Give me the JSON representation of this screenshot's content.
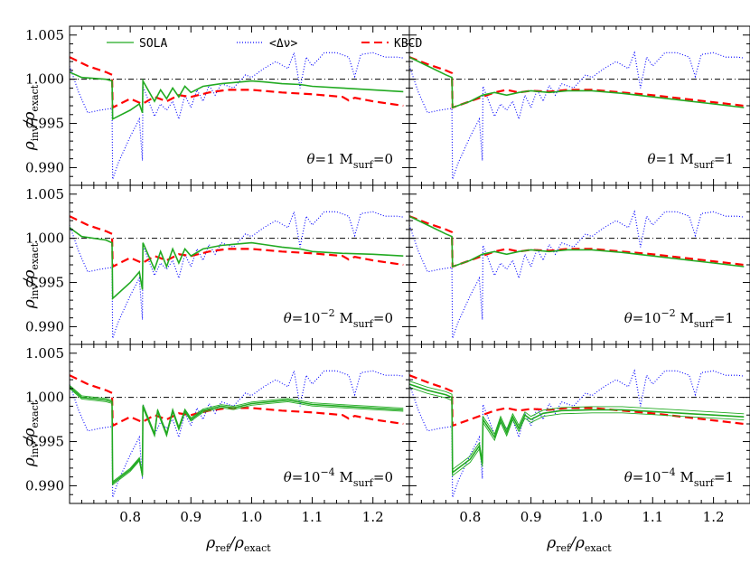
{
  "chart_data": {
    "type": "line",
    "layout": "3 rows x 2 columns, shared axes",
    "xlabel": {
      "main": "ρ",
      "sub": "ref",
      "mid": "/ρ",
      "sub2": "exact"
    },
    "ylabel": {
      "main": "ρ",
      "sub": "inv",
      "mid": "/ρ",
      "sub2": "exact"
    },
    "xlim": [
      0.7,
      1.26
    ],
    "ylim": [
      0.988,
      1.006
    ],
    "xticks": [
      0.8,
      0.9,
      1.0,
      1.1,
      1.2
    ],
    "xtick_labels": [
      "0.8",
      "0.9",
      "1.0",
      "1.1",
      "1.2"
    ],
    "yticks": [
      0.99,
      0.995,
      1.0,
      1.005
    ],
    "ytick_labels": [
      "0.990",
      "0.995",
      "1.000",
      "1.005"
    ],
    "reference_line": 1.0,
    "legend": {
      "placement": "top-left panel, top",
      "entries": [
        {
          "label": "SOLA",
          "color": "#22aa22",
          "style": "solid"
        },
        {
          "label": "<Δν>",
          "color": "#0000ff",
          "style": "dotted"
        },
        {
          "label": "KBCD",
          "color": "#ff0000",
          "style": "dashed"
        }
      ]
    },
    "panels": [
      {
        "row": 0,
        "col": 0,
        "theta": "1",
        "msurf": "0"
      },
      {
        "row": 0,
        "col": 1,
        "theta": "1",
        "msurf": "1"
      },
      {
        "row": 1,
        "col": 0,
        "theta": "10",
        "theta_exp": "−2",
        "msurf": "0"
      },
      {
        "row": 1,
        "col": 1,
        "theta": "10",
        "theta_exp": "−2",
        "msurf": "1"
      },
      {
        "row": 2,
        "col": 0,
        "theta": "10",
        "theta_exp": "−4",
        "msurf": "0"
      },
      {
        "row": 2,
        "col": 1,
        "theta": "10",
        "theta_exp": "−4",
        "msurf": "1"
      }
    ],
    "label_parts": {
      "theta_symbol": "θ",
      "equals": "=",
      "m": "M",
      "m_sub": "surf"
    },
    "series_common": {
      "delta_nu": {
        "x": [
          0.7,
          0.715,
          0.73,
          0.75,
          0.77,
          0.771,
          0.78,
          0.8,
          0.815,
          0.82,
          0.821,
          0.84,
          0.85,
          0.86,
          0.87,
          0.88,
          0.89,
          0.9,
          0.91,
          0.92,
          0.93,
          0.94,
          0.95,
          0.97,
          0.99,
          1.0,
          1.02,
          1.04,
          1.06,
          1.07,
          1.08,
          1.09,
          1.1,
          1.12,
          1.14,
          1.16,
          1.17,
          1.18,
          1.2,
          1.22,
          1.24,
          1.25
        ],
        "y": [
          1.0015,
          0.9985,
          0.9962,
          0.9965,
          0.9967,
          0.9887,
          0.9905,
          0.9935,
          0.9955,
          0.9908,
          0.9992,
          0.9958,
          0.9972,
          0.9965,
          0.9975,
          0.9955,
          0.9982,
          0.9968,
          0.9988,
          0.9975,
          0.9993,
          0.9982,
          0.9995,
          0.999,
          1.0005,
          1.0002,
          1.0012,
          1.002,
          1.0012,
          1.003,
          0.999,
          1.0025,
          1.0015,
          1.003,
          1.003,
          1.0025,
          1.0003,
          1.0028,
          1.003,
          1.0025,
          1.0025,
          1.0024
        ]
      },
      "kbcd_left": {
        "x": [
          0.7,
          0.73,
          0.76,
          0.77,
          0.771,
          0.8,
          0.82,
          0.84,
          0.86,
          0.88,
          0.9,
          0.93,
          0.96,
          1.0,
          1.05,
          1.1,
          1.15,
          1.16,
          1.17,
          1.2,
          1.25
        ],
        "y": [
          1.0025,
          1.0015,
          1.0008,
          1.0005,
          0.9968,
          0.9978,
          0.9972,
          0.998,
          0.9975,
          0.9982,
          0.998,
          0.9985,
          0.9988,
          0.9988,
          0.9985,
          0.9983,
          0.998,
          0.9976,
          0.9979,
          0.9975,
          0.997
        ]
      },
      "kbcd_right": {
        "x": [
          0.7,
          0.73,
          0.76,
          0.77,
          0.771,
          0.8,
          0.82,
          0.84,
          0.86,
          0.88,
          0.9,
          0.93,
          0.96,
          1.0,
          1.05,
          1.1,
          1.15,
          1.2,
          1.25
        ],
        "y": [
          1.0025,
          1.0017,
          1.001,
          1.0007,
          0.9968,
          0.9975,
          0.998,
          0.9985,
          0.9988,
          0.9985,
          0.9987,
          0.9986,
          0.9988,
          0.9988,
          0.9985,
          0.9982,
          0.9978,
          0.9974,
          0.997
        ]
      }
    },
    "sola": [
      {
        "panel": 0,
        "x": [
          0.7,
          0.72,
          0.76,
          0.77,
          0.771,
          0.8,
          0.815,
          0.82,
          0.821,
          0.84,
          0.85,
          0.86,
          0.87,
          0.88,
          0.89,
          0.9,
          0.92,
          0.95,
          1.0,
          1.02,
          1.05,
          1.08,
          1.1,
          1.15,
          1.2,
          1.25
        ],
        "y": [
          1.0008,
          1.0002,
          1.0,
          0.9998,
          0.9955,
          0.9965,
          0.9972,
          0.9962,
          0.9998,
          0.9975,
          0.9988,
          0.9978,
          0.999,
          0.998,
          0.9992,
          0.9985,
          0.9992,
          0.9995,
          0.9998,
          0.9997,
          0.9995,
          0.9994,
          0.9992,
          0.999,
          0.9988,
          0.9986
        ],
        "band": 0
      },
      {
        "panel": 1,
        "x": [
          0.7,
          0.73,
          0.76,
          0.77,
          0.771,
          0.8,
          0.82,
          0.84,
          0.86,
          0.88,
          0.9,
          0.93,
          0.96,
          1.0,
          1.05,
          1.1,
          1.15,
          1.2,
          1.25
        ],
        "y": [
          1.0025,
          1.0015,
          1.0005,
          1.0002,
          0.9968,
          0.9975,
          0.9982,
          0.9985,
          0.9982,
          0.9985,
          0.9987,
          0.9985,
          0.9987,
          0.9987,
          0.9984,
          0.998,
          0.9976,
          0.9972,
          0.9968
        ],
        "band": 0
      },
      {
        "panel": 2,
        "x": [
          0.7,
          0.72,
          0.76,
          0.77,
          0.771,
          0.8,
          0.815,
          0.82,
          0.821,
          0.84,
          0.85,
          0.86,
          0.87,
          0.88,
          0.89,
          0.9,
          0.92,
          0.95,
          1.0,
          1.02,
          1.05,
          1.08,
          1.1,
          1.15,
          1.2,
          1.25
        ],
        "y": [
          1.0012,
          1.0002,
          0.9998,
          0.9995,
          0.9932,
          0.995,
          0.9962,
          0.9942,
          0.9995,
          0.9965,
          0.9985,
          0.9968,
          0.9988,
          0.9972,
          0.9988,
          0.998,
          0.9988,
          0.9992,
          0.9995,
          0.9993,
          0.999,
          0.9988,
          0.9985,
          0.9983,
          0.9982,
          0.998
        ],
        "band": 0
      },
      {
        "panel": 3,
        "x": [
          0.7,
          0.73,
          0.76,
          0.77,
          0.771,
          0.8,
          0.82,
          0.84,
          0.86,
          0.88,
          0.9,
          0.93,
          0.96,
          1.0,
          1.05,
          1.1,
          1.15,
          1.2,
          1.25
        ],
        "y": [
          1.0025,
          1.0015,
          1.0005,
          1.0002,
          0.9968,
          0.9975,
          0.9982,
          0.9985,
          0.9982,
          0.9985,
          0.9987,
          0.9985,
          0.9987,
          0.9987,
          0.9984,
          0.998,
          0.9976,
          0.9972,
          0.9968
        ],
        "band": 0
      },
      {
        "panel": 4,
        "x": [
          0.7,
          0.72,
          0.76,
          0.77,
          0.771,
          0.8,
          0.815,
          0.82,
          0.821,
          0.84,
          0.845,
          0.86,
          0.87,
          0.88,
          0.89,
          0.9,
          0.92,
          0.95,
          0.97,
          1.0,
          1.03,
          1.06,
          1.1,
          1.15,
          1.2,
          1.25
        ],
        "y": [
          1.0012,
          1.0,
          0.9997,
          0.9995,
          0.9903,
          0.9918,
          0.993,
          0.9912,
          0.999,
          0.9958,
          0.9985,
          0.9958,
          0.9985,
          0.9965,
          0.9985,
          0.9975,
          0.9985,
          0.999,
          0.9988,
          0.9993,
          0.9995,
          0.9997,
          0.9992,
          0.999,
          0.9988,
          0.9986
        ],
        "band": 0.00018
      },
      {
        "panel": 5,
        "x": [
          0.7,
          0.73,
          0.76,
          0.77,
          0.771,
          0.8,
          0.815,
          0.82,
          0.821,
          0.84,
          0.85,
          0.86,
          0.87,
          0.88,
          0.89,
          0.9,
          0.92,
          0.95,
          1.0,
          1.05,
          1.1,
          1.15,
          1.2,
          1.25
        ],
        "y": [
          1.0015,
          1.0008,
          1.0003,
          1.0,
          0.9915,
          0.993,
          0.9945,
          0.9925,
          0.9975,
          0.9955,
          0.9975,
          0.996,
          0.9978,
          0.9965,
          0.998,
          0.9975,
          0.9982,
          0.9985,
          0.9986,
          0.9986,
          0.9984,
          0.9982,
          0.998,
          0.9978
        ],
        "band": 0.00035
      }
    ]
  }
}
